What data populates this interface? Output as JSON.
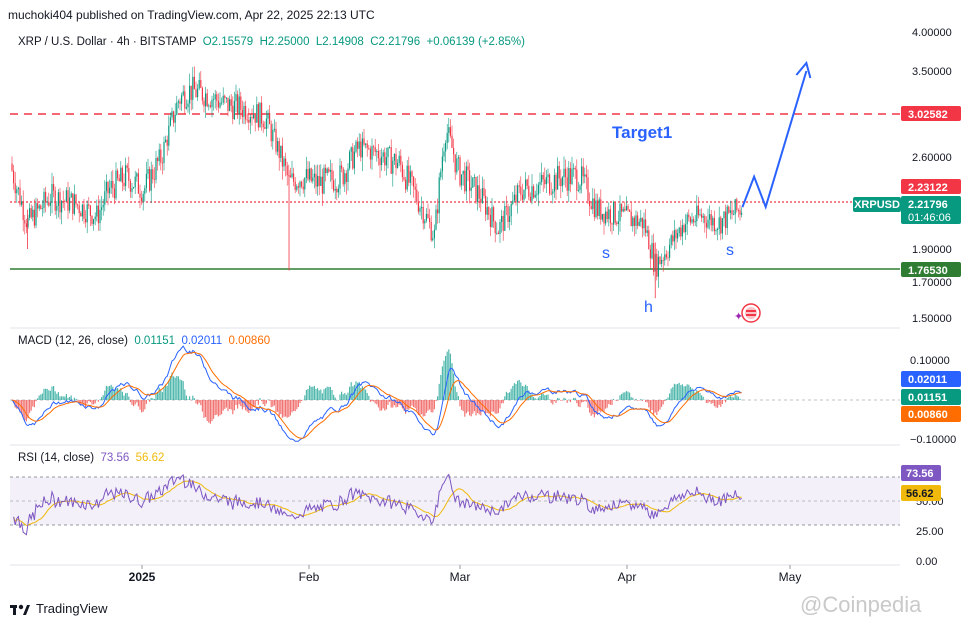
{
  "header": {
    "publisher": "muchoki404 published on TradingView.com, Apr 22, 2025 22:13 UTC"
  },
  "symbol": {
    "name": "XRP / U.S. Dollar · 4h · BITSTAMP",
    "open": "O2.15579",
    "high": "H2.25000",
    "low": "L2.14908",
    "close": "C2.21796",
    "change": "+0.06139 (+2.85%)"
  },
  "price_axis": {
    "ticks": [
      "4.00000",
      "3.50000",
      "2.60000",
      "1.90000",
      "1.70000",
      "1.50000"
    ],
    "labels": [
      {
        "text": "3.02582",
        "color": "#f23645"
      },
      {
        "text": "2.23122",
        "color": "#f23645"
      },
      {
        "text": "2.21796",
        "sub": "01:46:06",
        "color": "#089981"
      },
      {
        "text": "1.76530",
        "color": "#2e7d32"
      }
    ],
    "ticker_tag": "XRPUSD"
  },
  "macd": {
    "legend_title": "MACD (12, 26, close)",
    "hist": "0.01151",
    "macd": "0.02011",
    "signal": "0.00860",
    "ticks": [
      "0.10000",
      "−0.10000"
    ],
    "labels": [
      {
        "text": "0.02011",
        "color": "#2962ff"
      },
      {
        "text": "0.01151",
        "color": "#089981"
      },
      {
        "text": "0.00860",
        "color": "#ff6d00"
      }
    ]
  },
  "rsi": {
    "legend_title": "RSI (14, close)",
    "rsi": "73.56",
    "ma": "56.62",
    "ticks": [
      "50.00",
      "25.00",
      "0.00"
    ],
    "labels": [
      {
        "text": "73.56",
        "color": "#7e57c2"
      },
      {
        "text": "56.62",
        "color": "#f0b90b"
      }
    ]
  },
  "time_axis": [
    "2025",
    "Feb",
    "Mar",
    "Apr",
    "May"
  ],
  "annotations": {
    "target": "Target1",
    "s1": "s",
    "h": "h",
    "s2": "s"
  },
  "footer": {
    "brand": "TradingView"
  },
  "watermark": "@Coinpedia",
  "chart_data": {
    "type": "line",
    "title": "XRP / U.S. Dollar · 4h · BITSTAMP",
    "price_ylim": [
      1.5,
      4.0
    ],
    "price_path": [
      [
        "2024-12-17",
        2.55
      ],
      [
        "2024-12-20",
        2.1
      ],
      [
        "2024-12-24",
        2.3
      ],
      [
        "2024-12-28",
        2.25
      ],
      [
        "2025-01-01",
        2.15
      ],
      [
        "2025-01-03",
        2.35
      ],
      [
        "2025-01-06",
        2.45
      ],
      [
        "2025-01-09",
        2.35
      ],
      [
        "2025-01-12",
        2.6
      ],
      [
        "2025-01-15",
        3.2
      ],
      [
        "2025-01-17",
        3.3
      ],
      [
        "2025-01-20",
        3.25
      ],
      [
        "2025-01-23",
        3.15
      ],
      [
        "2025-01-27",
        3.1
      ],
      [
        "2025-01-30",
        3.0
      ],
      [
        "2025-02-01",
        2.7
      ],
      [
        "2025-02-03",
        2.4
      ],
      [
        "2025-02-05",
        2.45
      ],
      [
        "2025-02-08",
        2.4
      ],
      [
        "2025-02-12",
        2.45
      ],
      [
        "2025-02-15",
        2.7
      ],
      [
        "2025-02-18",
        2.65
      ],
      [
        "2025-02-22",
        2.55
      ],
      [
        "2025-02-26",
        2.2
      ],
      [
        "2025-02-28",
        2.0
      ],
      [
        "2025-03-02",
        2.9
      ],
      [
        "2025-03-04",
        2.5
      ],
      [
        "2025-03-08",
        2.3
      ],
      [
        "2025-03-11",
        2.05
      ],
      [
        "2025-03-15",
        2.35
      ],
      [
        "2025-03-19",
        2.4
      ],
      [
        "2025-03-22",
        2.45
      ],
      [
        "2025-03-25",
        2.45
      ],
      [
        "2025-03-28",
        2.2
      ],
      [
        "2025-04-01",
        2.15
      ],
      [
        "2025-04-05",
        2.1
      ],
      [
        "2025-04-07",
        1.8
      ],
      [
        "2025-04-09",
        1.9
      ],
      [
        "2025-04-12",
        2.1
      ],
      [
        "2025-04-15",
        2.15
      ],
      [
        "2025-04-18",
        2.1
      ],
      [
        "2025-04-22",
        2.218
      ]
    ],
    "horizontal_levels": [
      {
        "value": 3.02582,
        "style": "dashed",
        "color": "#f23645"
      },
      {
        "value": 2.23122,
        "style": "dotted",
        "color": "#f23645"
      },
      {
        "value": 1.7653,
        "style": "solid",
        "color": "#2e7d32"
      }
    ],
    "projection": [
      [
        "2025-04-22",
        2.218
      ],
      [
        "2025-04-24",
        2.45
      ],
      [
        "2025-04-26",
        2.22
      ],
      [
        "2025-05-03",
        3.5
      ]
    ],
    "macd_last": {
      "macd": 0.02011,
      "signal": 0.0086,
      "hist": 0.01151
    },
    "rsi_last": {
      "rsi": 73.56,
      "ma": 56.62
    },
    "rsi_levels": [
      70,
      50,
      30
    ]
  }
}
